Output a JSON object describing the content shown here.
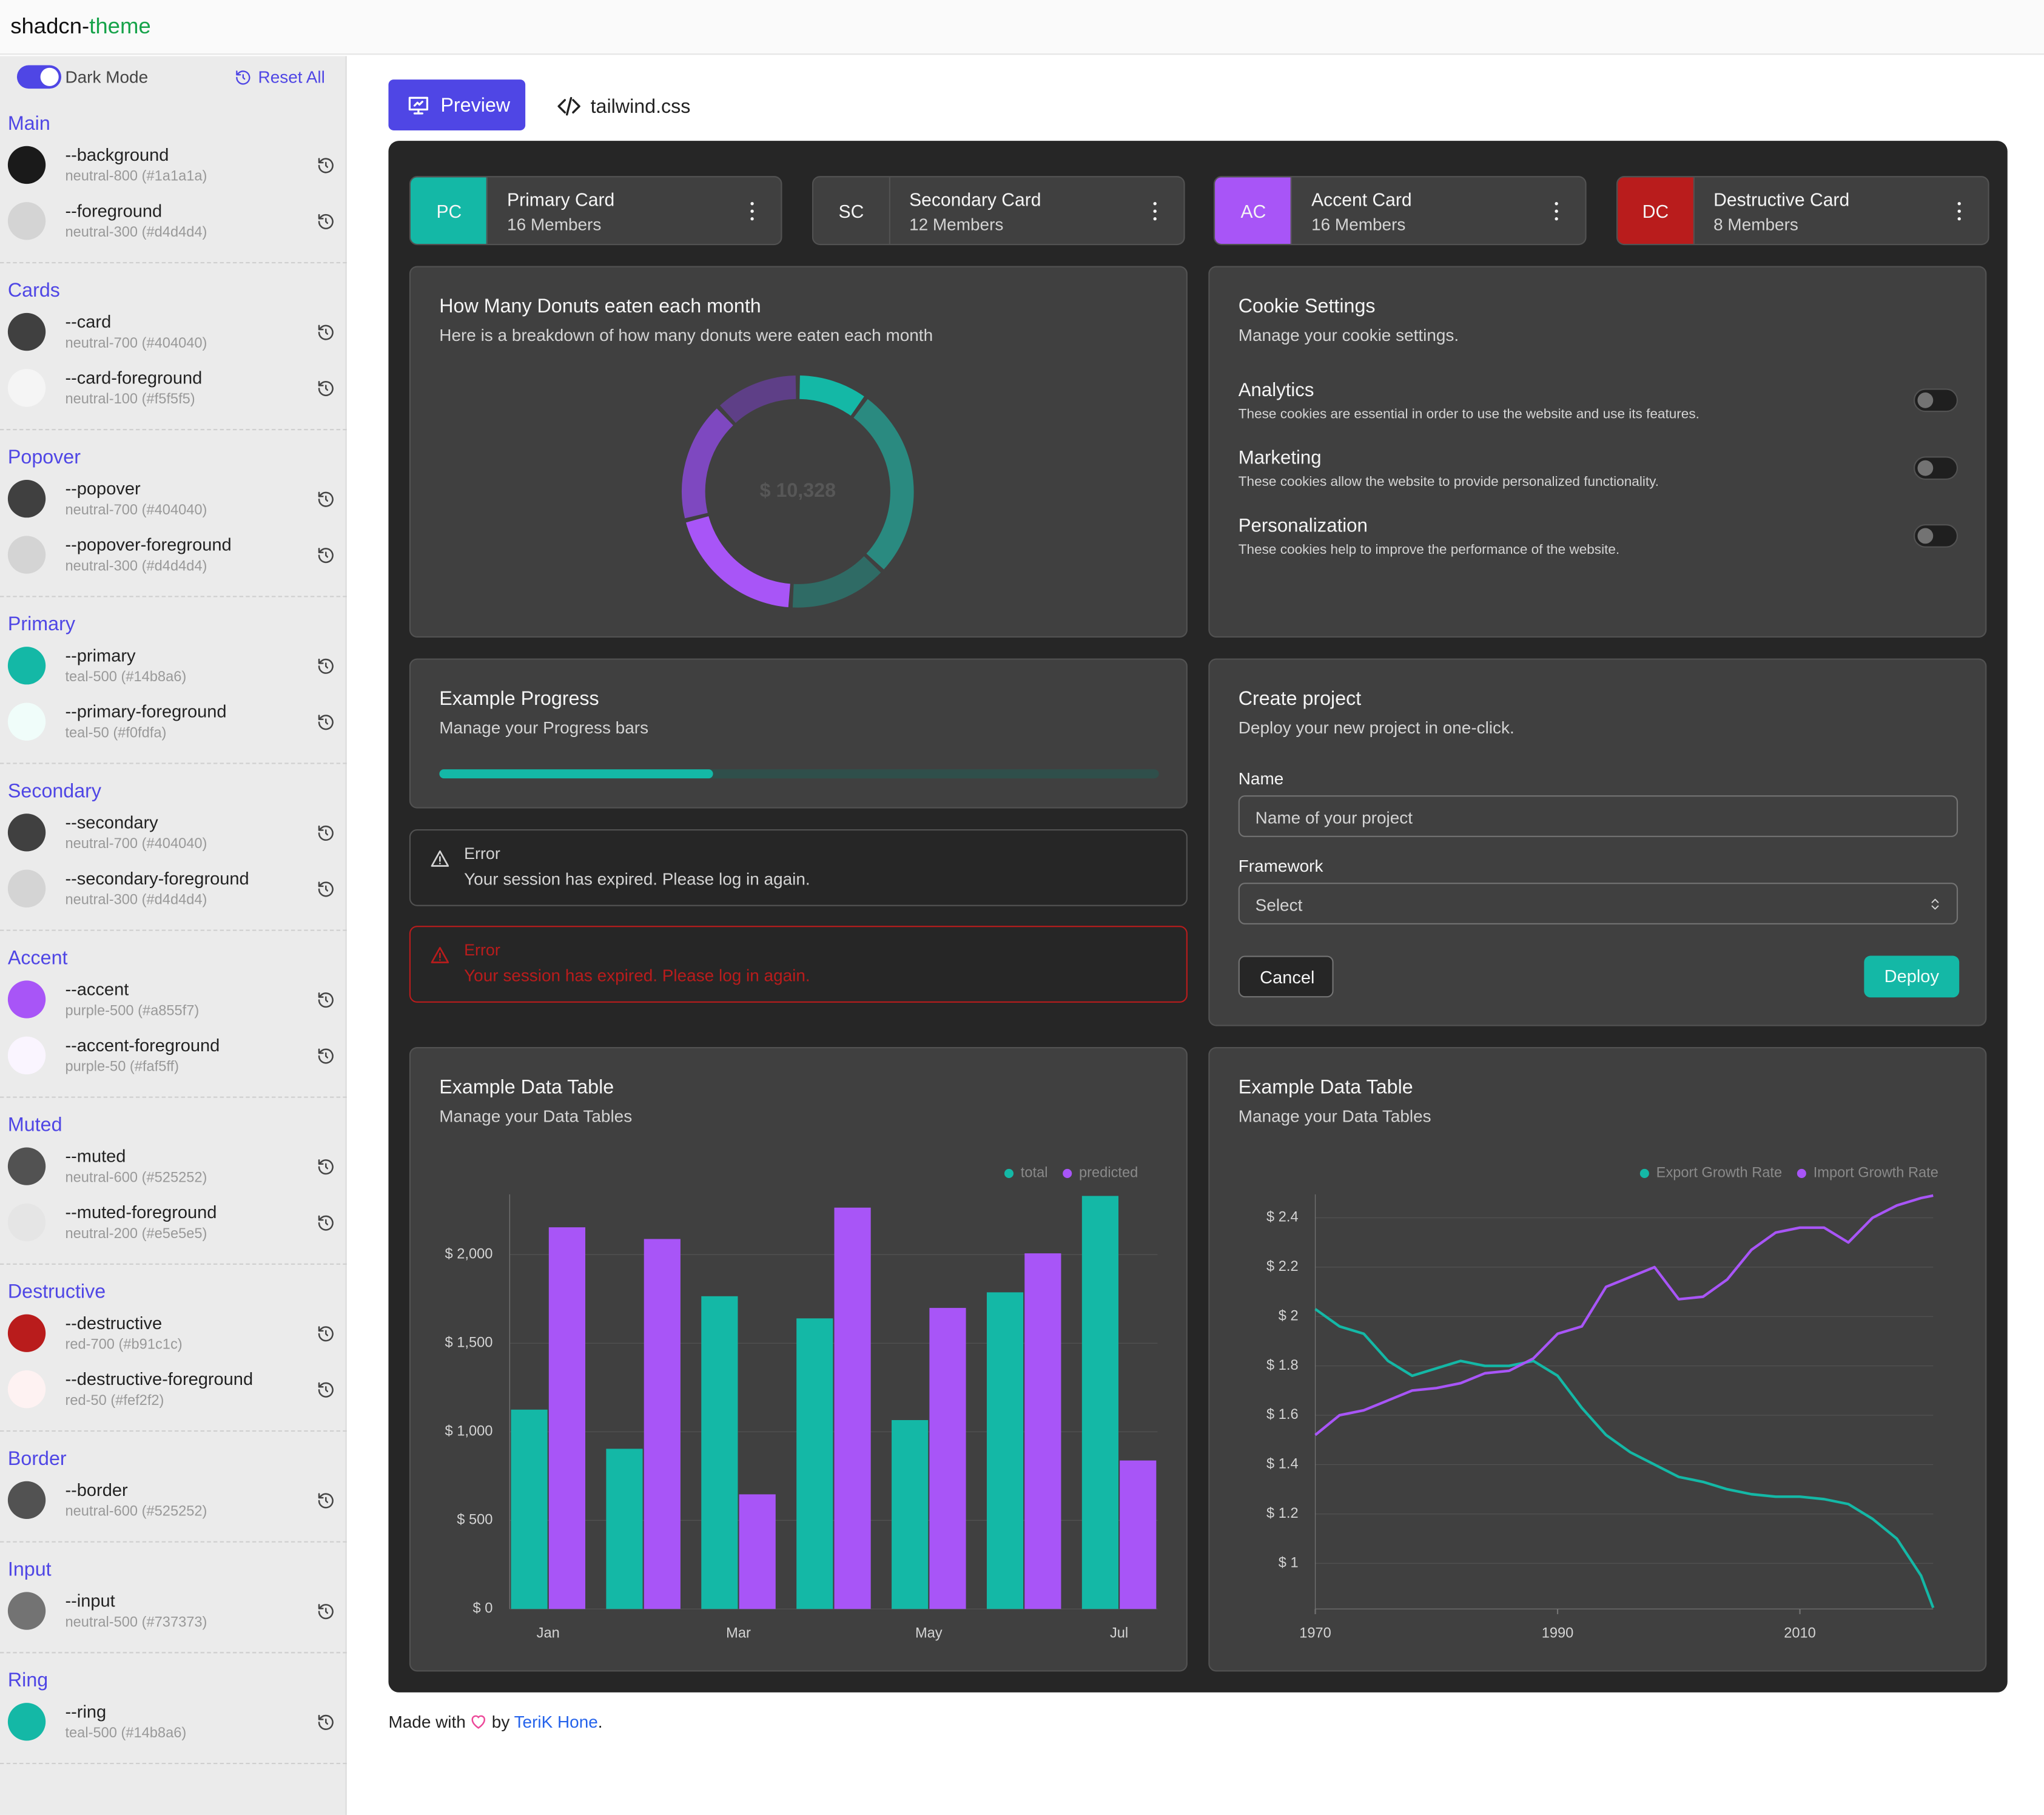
{
  "header": {
    "brand": "shadcn-",
    "brand_accent": "theme"
  },
  "sidebar": {
    "toggle": "Dark Mode",
    "reset": "Reset All",
    "sections": [
      {
        "title": "Main",
        "items": [
          {
            "name": "--background",
            "desc": "neutral-800 (#1a1a1a)",
            "color": "#1a1a1a"
          },
          {
            "name": "--foreground",
            "desc": "neutral-300 (#d4d4d4)",
            "color": "#d4d4d4"
          }
        ]
      },
      {
        "title": "Cards",
        "items": [
          {
            "name": "--card",
            "desc": "neutral-700 (#404040)",
            "color": "#404040"
          },
          {
            "name": "--card-foreground",
            "desc": "neutral-100 (#f5f5f5)",
            "color": "#f5f5f5"
          }
        ]
      },
      {
        "title": "Popover",
        "items": [
          {
            "name": "--popover",
            "desc": "neutral-700 (#404040)",
            "color": "#404040"
          },
          {
            "name": "--popover-foreground",
            "desc": "neutral-300 (#d4d4d4)",
            "color": "#d4d4d4"
          }
        ]
      },
      {
        "title": "Primary",
        "items": [
          {
            "name": "--primary",
            "desc": "teal-500 (#14b8a6)",
            "color": "#14b8a6"
          },
          {
            "name": "--primary-foreground",
            "desc": "teal-50 (#f0fdfa)",
            "color": "#f0fdfa"
          }
        ]
      },
      {
        "title": "Secondary",
        "items": [
          {
            "name": "--secondary",
            "desc": "neutral-700 (#404040)",
            "color": "#404040"
          },
          {
            "name": "--secondary-foreground",
            "desc": "neutral-300 (#d4d4d4)",
            "color": "#d4d4d4"
          }
        ]
      },
      {
        "title": "Accent",
        "items": [
          {
            "name": "--accent",
            "desc": "purple-500 (#a855f7)",
            "color": "#a855f7"
          },
          {
            "name": "--accent-foreground",
            "desc": "purple-50 (#faf5ff)",
            "color": "#faf5ff"
          }
        ]
      },
      {
        "title": "Muted",
        "items": [
          {
            "name": "--muted",
            "desc": "neutral-600 (#525252)",
            "color": "#525252"
          },
          {
            "name": "--muted-foreground",
            "desc": "neutral-200 (#e5e5e5)",
            "color": "#e5e5e5"
          }
        ]
      },
      {
        "title": "Destructive",
        "items": [
          {
            "name": "--destructive",
            "desc": "red-700 (#b91c1c)",
            "color": "#b91c1c"
          },
          {
            "name": "--destructive-foreground",
            "desc": "red-50 (#fef2f2)",
            "color": "#fef2f2"
          }
        ]
      },
      {
        "title": "Border",
        "items": [
          {
            "name": "--border",
            "desc": "neutral-600 (#525252)",
            "color": "#525252"
          }
        ]
      },
      {
        "title": "Input",
        "items": [
          {
            "name": "--input",
            "desc": "neutral-500 (#737373)",
            "color": "#737373"
          }
        ]
      },
      {
        "title": "Ring",
        "items": [
          {
            "name": "--ring",
            "desc": "teal-500 (#14b8a6)",
            "color": "#14b8a6"
          }
        ]
      }
    ]
  },
  "tabs": [
    "Preview",
    "tailwind.css"
  ],
  "cards": [
    {
      "abbr": "PC",
      "title": "Primary Card",
      "members": "16 Members",
      "color": "#14b8a6"
    },
    {
      "abbr": "SC",
      "title": "Secondary Card",
      "members": "12 Members",
      "color": "#404040"
    },
    {
      "abbr": "AC",
      "title": "Accent Card",
      "members": "16 Members",
      "color": "#a855f7"
    },
    {
      "abbr": "DC",
      "title": "Destructive Card",
      "members": "8 Members",
      "color": "#b91c1c"
    }
  ],
  "donut_card": {
    "title": "How Many Donuts eaten each month",
    "subtitle": "Here is a breakdown of how many donuts were eaten each month"
  },
  "cookie": {
    "title": "Cookie Settings",
    "subtitle": "Manage your cookie settings.",
    "items": [
      {
        "label": "Analytics",
        "desc": "These cookies are essential in order to use the website and use its features."
      },
      {
        "label": "Marketing",
        "desc": "These cookies allow the website to provide personalized functionality."
      },
      {
        "label": "Personalization",
        "desc": "These cookies help to improve the performance of the website."
      }
    ]
  },
  "progress": {
    "title": "Example Progress",
    "subtitle": "Manage your Progress bars",
    "value": 38
  },
  "alerts": [
    {
      "title": "Error",
      "message": "Your session has expired. Please log in again."
    },
    {
      "title": "Error",
      "message": "Your session has expired. Please log in again."
    }
  ],
  "project": {
    "title": "Create project",
    "subtitle": "Deploy your new project in one-click.",
    "name_label": "Name",
    "name_placeholder": "Name of your project",
    "framework_label": "Framework",
    "select": "Select",
    "cancel": "Cancel",
    "deploy": "Deploy"
  },
  "table_cards": [
    {
      "title": "Example Data Table",
      "subtitle": "Manage your Data Tables"
    },
    {
      "title": "Example Data Table",
      "subtitle": "Manage your Data Tables"
    }
  ],
  "footer": {
    "pre": "Made with",
    "by": "by",
    "author": "TeriK Hone",
    "post": "."
  },
  "chart_data": [
    {
      "type": "donut",
      "center_label": "$ 10,328",
      "values": [
        10,
        27,
        14,
        20,
        17,
        12
      ],
      "colors": [
        "#14b8a6",
        "#2a8a80",
        "#2f6b65",
        "#a855f7",
        "#7e48c0",
        "#5e3f87"
      ]
    },
    {
      "type": "bar",
      "categories": [
        "Jan",
        null,
        "Mar",
        null,
        "May",
        null,
        "Jul"
      ],
      "series": [
        {
          "name": "total",
          "color": "#14b8a6",
          "values": [
            1125,
            904,
            1765,
            1640,
            1066,
            1787,
            2331
          ]
        },
        {
          "name": "predicted",
          "color": "#a855f7",
          "values": [
            2154,
            2088,
            647,
            2265,
            1699,
            2007,
            838
          ]
        }
      ],
      "ylim": [
        0,
        2340
      ],
      "yticks": [
        {
          "value": 0,
          "label": "$ 0"
        },
        {
          "value": 500,
          "label": "$ 500"
        },
        {
          "value": 1000,
          "label": "$ 1,000"
        },
        {
          "value": 1500,
          "label": "$ 1,500"
        },
        {
          "value": 2000,
          "label": "$ 2,000"
        }
      ],
      "grid": true,
      "legend": "top-right"
    },
    {
      "type": "line",
      "x": [
        1970,
        1972,
        1974,
        1976,
        1978,
        1980,
        1982,
        1984,
        1986,
        1988,
        1990,
        1992,
        1994,
        1996,
        1998,
        2000,
        2002,
        2004,
        2006,
        2008,
        2010,
        2012,
        2014,
        2016,
        2018,
        2020,
        2021
      ],
      "series": [
        {
          "name": "Export Growth Rate",
          "color": "#14b8a6",
          "values": [
            2.03,
            1.96,
            1.93,
            1.82,
            1.76,
            1.79,
            1.82,
            1.8,
            1.8,
            1.82,
            1.76,
            1.63,
            1.52,
            1.45,
            1.4,
            1.35,
            1.33,
            1.3,
            1.28,
            1.27,
            1.27,
            1.26,
            1.24,
            1.18,
            1.1,
            0.95,
            0.82
          ]
        },
        {
          "name": "Import Growth Rate",
          "color": "#a855f7",
          "values": [
            1.52,
            1.6,
            1.62,
            1.66,
            1.7,
            1.71,
            1.73,
            1.77,
            1.78,
            1.83,
            1.93,
            1.96,
            2.12,
            2.16,
            2.2,
            2.07,
            2.08,
            2.15,
            2.27,
            2.34,
            2.36,
            2.36,
            2.3,
            2.4,
            2.45,
            2.48,
            2.49
          ]
        }
      ],
      "xlim": [
        1970,
        2021
      ],
      "xticks": [
        1970,
        1990,
        2010
      ],
      "ylim": [
        0.815,
        2.495
      ],
      "yticks": [
        {
          "value": 1,
          "label": "$ 1"
        },
        {
          "value": 1.2,
          "label": "$ 1.2"
        },
        {
          "value": 1.4,
          "label": "$ 1.4"
        },
        {
          "value": 1.6,
          "label": "$ 1.6"
        },
        {
          "value": 1.8,
          "label": "$ 1.8"
        },
        {
          "value": 2,
          "label": "$ 2"
        },
        {
          "value": 2.2,
          "label": "$ 2.2"
        },
        {
          "value": 2.4,
          "label": "$ 2.4"
        }
      ],
      "grid": true,
      "legend": "top-right"
    }
  ]
}
